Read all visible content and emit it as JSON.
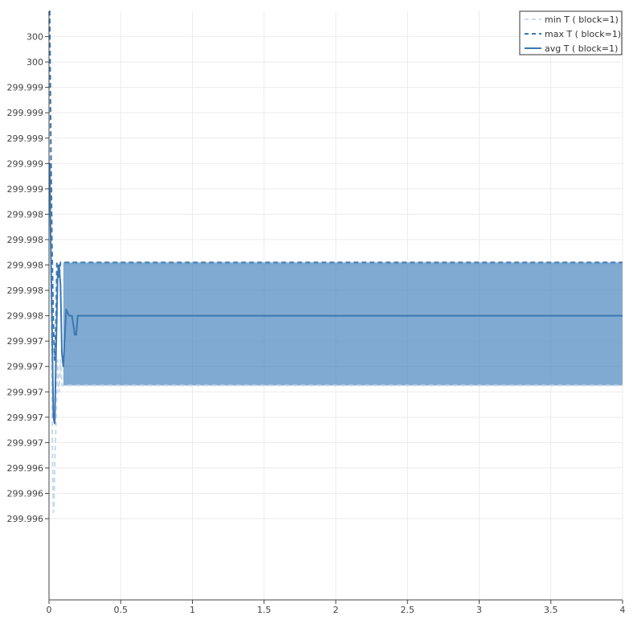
{
  "chart_data": {
    "type": "line",
    "title": "",
    "xlabel": "",
    "ylabel": "",
    "xlim": [
      0,
      4
    ],
    "ylim": [
      299.99556,
      300.0002
    ],
    "grid": true,
    "legend_position": "top-right",
    "x_ticks": [
      {
        "value": 0,
        "label": "0"
      },
      {
        "value": 0.5,
        "label": "0.5"
      },
      {
        "value": 1,
        "label": "1"
      },
      {
        "value": 1.5,
        "label": "1.5"
      },
      {
        "value": 2,
        "label": "2"
      },
      {
        "value": 2.5,
        "label": "2.5"
      },
      {
        "value": 3,
        "label": "3"
      },
      {
        "value": 3.5,
        "label": "3.5"
      },
      {
        "value": 4,
        "label": "4"
      }
    ],
    "y_ticks": [
      {
        "value": 300.0,
        "label": "300"
      },
      {
        "value": 299.9998,
        "label": "300"
      },
      {
        "value": 299.9996,
        "label": "299.999"
      },
      {
        "value": 299.9994,
        "label": "299.999"
      },
      {
        "value": 299.9992,
        "label": "299.999"
      },
      {
        "value": 299.999,
        "label": "299.999"
      },
      {
        "value": 299.9988,
        "label": "299.999"
      },
      {
        "value": 299.9986,
        "label": "299.998"
      },
      {
        "value": 299.9984,
        "label": "299.998"
      },
      {
        "value": 299.9982,
        "label": "299.998"
      },
      {
        "value": 299.998,
        "label": "299.998"
      },
      {
        "value": 299.9978,
        "label": "299.998"
      },
      {
        "value": 299.9976,
        "label": "299.997"
      },
      {
        "value": 299.9974,
        "label": "299.997"
      },
      {
        "value": 299.9972,
        "label": "299.997"
      },
      {
        "value": 299.997,
        "label": "299.997"
      },
      {
        "value": 299.9968,
        "label": "299.997"
      },
      {
        "value": 299.9966,
        "label": "299.996"
      },
      {
        "value": 299.9964,
        "label": "299.996"
      },
      {
        "value": 299.9962,
        "label": "299.996"
      }
    ],
    "band": {
      "color": "#4a86bd",
      "opacity": 0.7,
      "x": [
        0.1,
        4.0
      ],
      "lower": 299.99725,
      "upper": 299.99822
    },
    "series": [
      {
        "name": "min T ( block=1)",
        "color": "#c9d9ea",
        "style": "dashed",
        "x": [
          0,
          0.005,
          0.01,
          0.015,
          0.02,
          0.025,
          0.03,
          0.035,
          0.04,
          0.05,
          0.06,
          0.07,
          0.08,
          0.09,
          0.1,
          0.11,
          0.12,
          1.0,
          2.0,
          3.0,
          4.0
        ],
        "y": [
          300.0002,
          299.9995,
          299.9988,
          299.998,
          299.9972,
          299.9966,
          299.99625,
          299.9963,
          299.9966,
          299.997,
          299.99745,
          299.9972,
          299.99745,
          299.99725,
          299.99725,
          299.99725,
          299.99725,
          299.99725,
          299.99725,
          299.99725,
          299.99725
        ]
      },
      {
        "name": "max T ( block=1)",
        "color": "#3a78b4",
        "style": "dashed",
        "x": [
          0,
          0.005,
          0.01,
          0.02,
          0.03,
          0.04,
          0.05,
          0.055,
          0.06,
          0.07,
          0.08,
          0.09,
          0.1,
          0.12,
          1.0,
          2.0,
          3.0,
          4.0
        ],
        "y": [
          300.0002,
          300.0002,
          299.9995,
          299.9984,
          299.99775,
          299.99745,
          299.9978,
          299.99822,
          299.99822,
          299.9981,
          299.99822,
          299.99822,
          299.99822,
          299.99822,
          299.99822,
          299.99822,
          299.99822,
          299.99822
        ]
      },
      {
        "name": "avg T ( block=1)",
        "color": "#3a78b4",
        "style": "solid",
        "x": [
          0,
          0.005,
          0.01,
          0.02,
          0.03,
          0.04,
          0.05,
          0.06,
          0.07,
          0.08,
          0.09,
          0.1,
          0.12,
          0.14,
          0.16,
          0.18,
          0.19,
          0.2,
          0.21,
          1.0,
          2.0,
          3.0,
          4.0
        ],
        "y": [
          299.999,
          299.999,
          299.9985,
          299.9978,
          299.997,
          299.99695,
          299.99755,
          299.9981,
          299.9982,
          299.99805,
          299.9975,
          299.9974,
          299.99785,
          299.9978,
          299.9978,
          299.99765,
          299.99765,
          299.9978,
          299.9978,
          299.9978,
          299.9978,
          299.9978,
          299.9978
        ]
      }
    ]
  }
}
